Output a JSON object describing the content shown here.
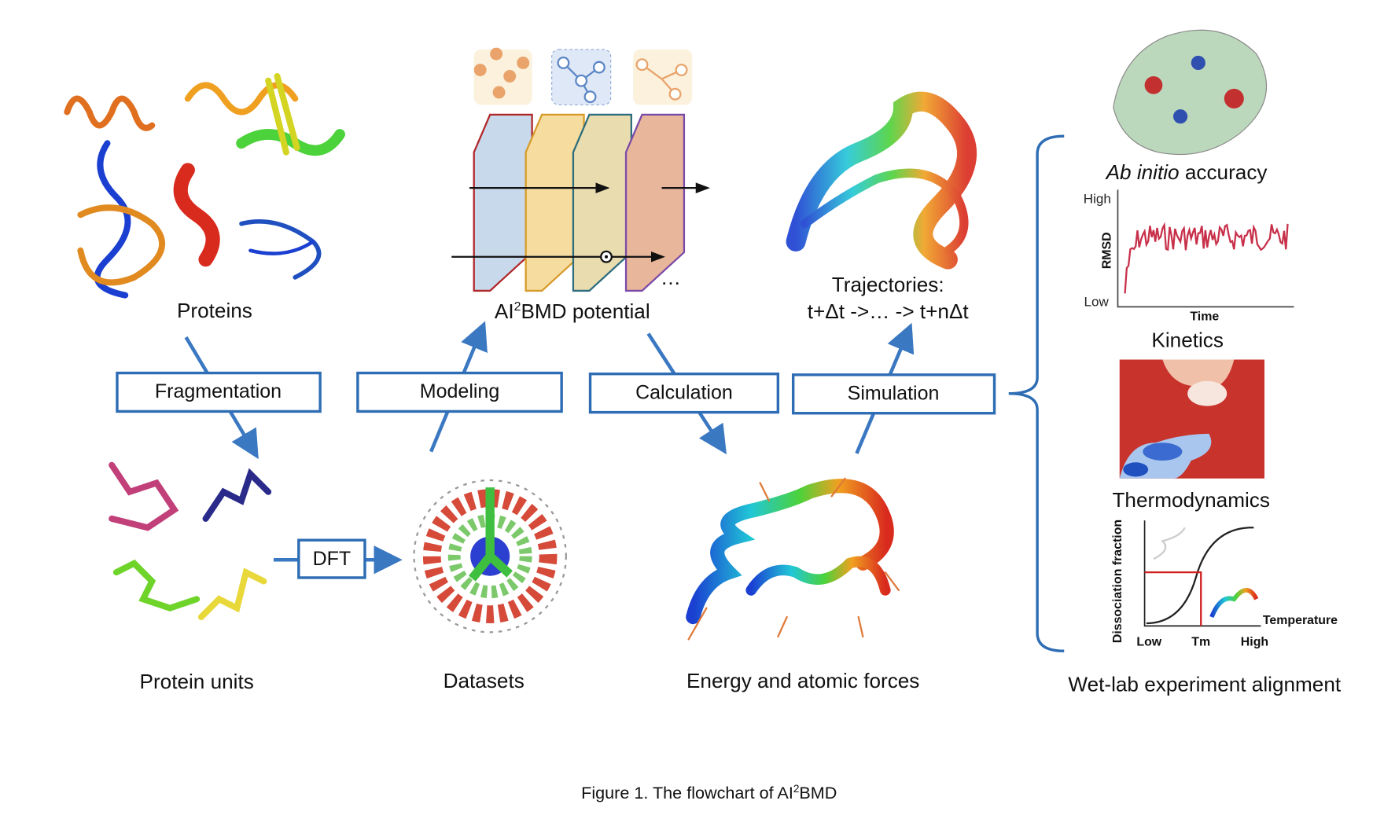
{
  "nodes": {
    "proteins": "Proteins",
    "protein_units": "Protein units",
    "datasets": "Datasets",
    "energy": "Energy and atomic forces",
    "potential": {
      "pre": "AI",
      "sup": "2",
      "post": "BMD potential"
    },
    "ellipsis": "…",
    "trajectories": {
      "line1": "Trajectories:",
      "line2": "t+Δt ->… -> t+nΔt"
    }
  },
  "steps": {
    "fragmentation": "Fragmentation",
    "modeling": "Modeling",
    "calculation": "Calculation",
    "simulation": "Simulation",
    "dft": "DFT"
  },
  "experiments": {
    "ab_initio": {
      "italic": "Ab initio",
      "rest": " accuracy"
    },
    "rmsd_plot": {
      "y_high": "High",
      "y_low": "Low",
      "y_label": "RMSD",
      "x_label": "Time"
    },
    "kinetics": "Kinetics",
    "thermodynamics": "Thermodynamics",
    "dissociation_plot": {
      "y_label": "Dissociation fraction",
      "x_low": "Low",
      "x_tm": "Tm",
      "x_high": "High",
      "x_label": "Temperature"
    },
    "summary": "Wet-lab experiment alignment"
  },
  "caption": {
    "pre": "Figure 1. The flowchart of AI",
    "sup": "2",
    "post": "BMD"
  }
}
